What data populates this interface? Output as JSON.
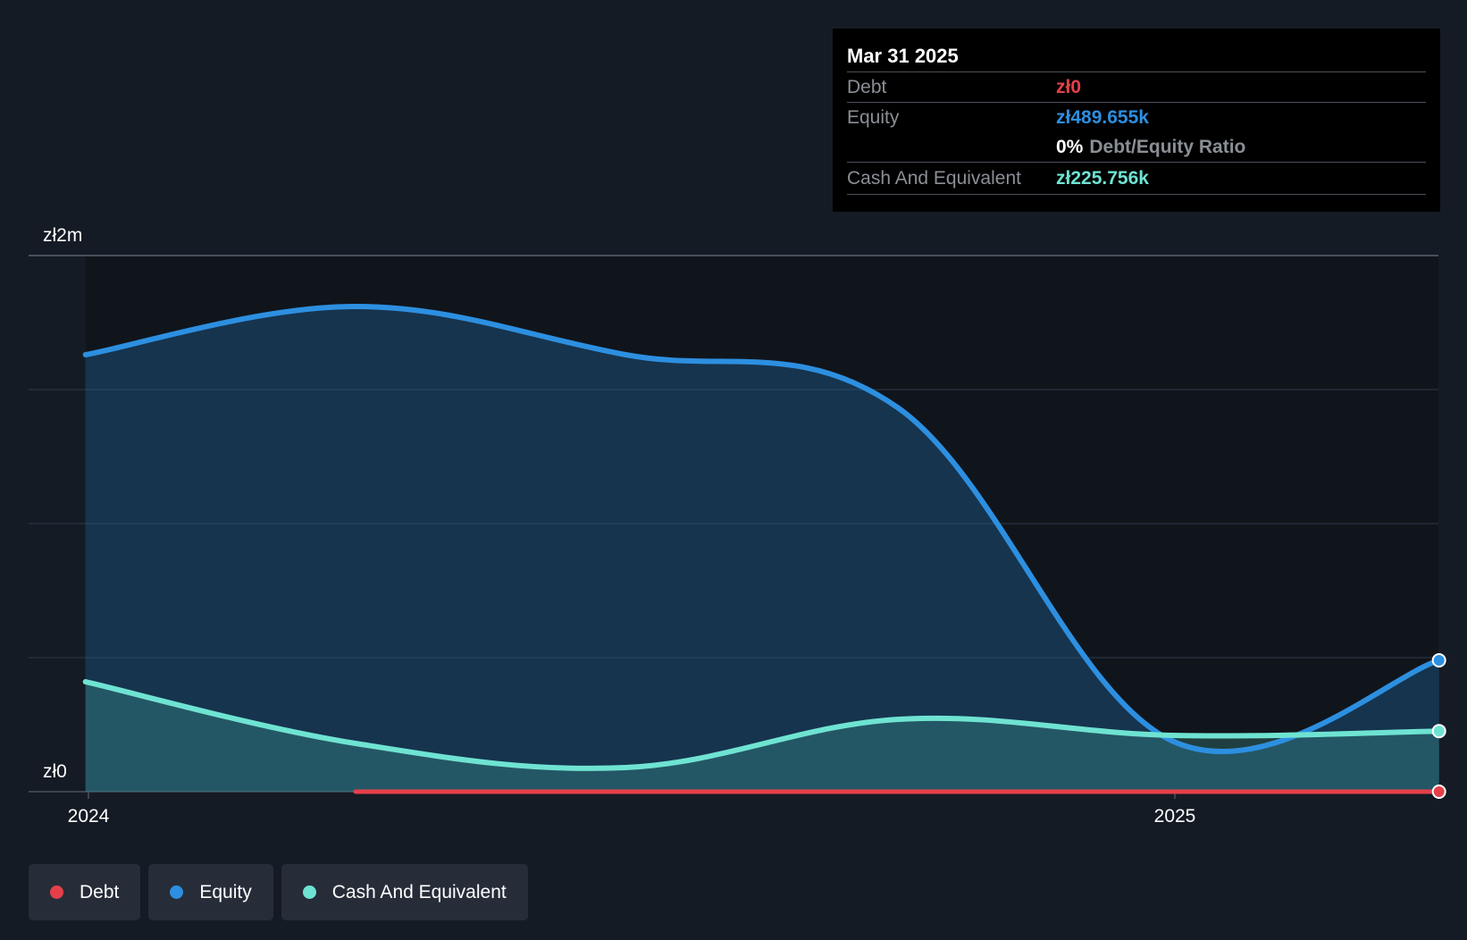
{
  "colors": {
    "debt": "#e5404a",
    "equity": "#2d8fe0",
    "cash": "#6fe3d2",
    "background": "#151b24",
    "plot_background": "#10151c"
  },
  "tooltip": {
    "date": "Mar 31 2025",
    "debt_label": "Debt",
    "debt_value": "zł0",
    "equity_label": "Equity",
    "equity_value": "zł489.655k",
    "ratio_value": "0%",
    "ratio_label": "Debt/Equity Ratio",
    "cash_label": "Cash And Equivalent",
    "cash_value": "zł225.756k"
  },
  "legend": [
    {
      "label": "Debt",
      "color": "#e5404a"
    },
    {
      "label": "Equity",
      "color": "#2d8fe0"
    },
    {
      "label": "Cash And Equivalent",
      "color": "#6fe3d2"
    }
  ],
  "chart_data": {
    "type": "area",
    "y_tick_labels": [
      "zł2m",
      "zł0"
    ],
    "x_tick_labels": [
      "2024",
      "2025"
    ],
    "ylim": [
      0,
      2000000
    ],
    "x_range": [
      "2024-01-01",
      "2025-03-31"
    ],
    "x_ticks": [
      "2024-01-01",
      "2025-01-01"
    ],
    "grid": true,
    "legend_position": "bottom-left",
    "series": [
      {
        "name": "Equity",
        "x": [
          "2023-12-31",
          "2024-03-31",
          "2024-06-30",
          "2024-09-30",
          "2024-12-31",
          "2025-03-31"
        ],
        "values": [
          1630000,
          1810000,
          1630000,
          1430000,
          190000,
          490000
        ]
      },
      {
        "name": "Cash And Equivalent",
        "x": [
          "2023-12-31",
          "2024-03-31",
          "2024-06-30",
          "2024-09-30",
          "2024-12-31",
          "2025-03-31"
        ],
        "values": [
          410000,
          180000,
          90000,
          270000,
          210000,
          226000
        ]
      },
      {
        "name": "Debt",
        "x": [
          "2024-03-31",
          "2024-06-30",
          "2024-09-30",
          "2024-12-31",
          "2025-03-31"
        ],
        "values": [
          0,
          0,
          0,
          0,
          0
        ]
      }
    ]
  }
}
